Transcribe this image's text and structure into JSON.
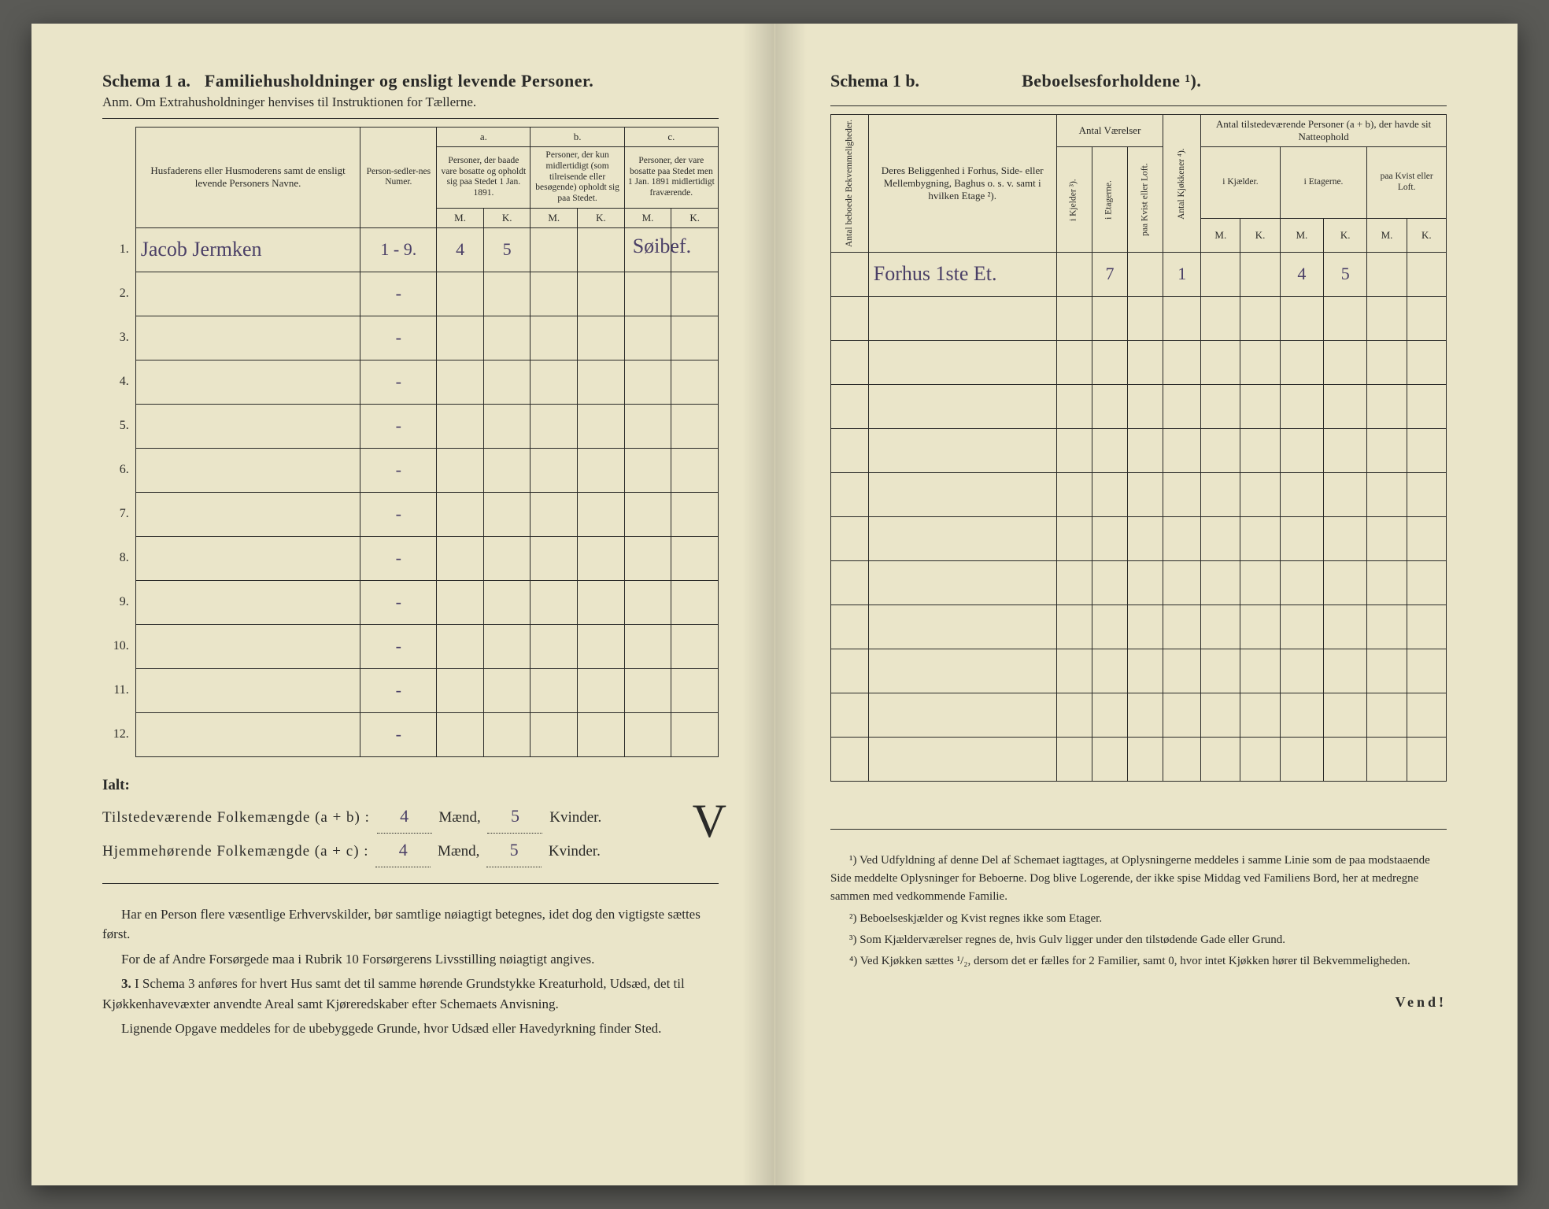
{
  "page_background": "#eae5c9",
  "ink_color": "#2a2a28",
  "handwriting_color": "#4a3f66",
  "left": {
    "schema_label": "Schema 1 a.",
    "schema_title": "Familiehusholdninger og ensligt levende Personer.",
    "schema_sub": "Anm.  Om Extrahusholdninger henvises til Instruktionen for Tællerne.",
    "col_name": "Husfaderens eller Husmoderens samt de ensligt levende Personers Navne.",
    "col_personsedler": "Person-sedler-nes Numer.",
    "group_a_label": "a.",
    "group_a_text": "Personer, der baade vare bosatte og opholdt sig paa Stedet 1 Jan. 1891.",
    "group_b_label": "b.",
    "group_b_text": "Personer, der kun midlertidigt (som tilreisende eller besøgende) opholdt sig paa Stedet.",
    "group_c_label": "c.",
    "group_c_text": "Personer, der vare bosatte paa Stedet men 1 Jan. 1891 midlertidigt fraværende.",
    "mk_m": "M.",
    "mk_k": "K.",
    "rows": [
      {
        "n": "1.",
        "name": "Jacob Jermken",
        "num": "1 - 9.",
        "aM": "4",
        "aK": "5",
        "bM": "",
        "bK": "",
        "cM": "",
        "cK": "",
        "note": "Søibef."
      },
      {
        "n": "2.",
        "name": "",
        "num": "-",
        "aM": "",
        "aK": "",
        "bM": "",
        "bK": "",
        "cM": "",
        "cK": "",
        "note": ""
      },
      {
        "n": "3.",
        "name": "",
        "num": "-",
        "aM": "",
        "aK": "",
        "bM": "",
        "bK": "",
        "cM": "",
        "cK": "",
        "note": ""
      },
      {
        "n": "4.",
        "name": "",
        "num": "-",
        "aM": "",
        "aK": "",
        "bM": "",
        "bK": "",
        "cM": "",
        "cK": "",
        "note": ""
      },
      {
        "n": "5.",
        "name": "",
        "num": "-",
        "aM": "",
        "aK": "",
        "bM": "",
        "bK": "",
        "cM": "",
        "cK": "",
        "note": ""
      },
      {
        "n": "6.",
        "name": "",
        "num": "-",
        "aM": "",
        "aK": "",
        "bM": "",
        "bK": "",
        "cM": "",
        "cK": "",
        "note": ""
      },
      {
        "n": "7.",
        "name": "",
        "num": "-",
        "aM": "",
        "aK": "",
        "bM": "",
        "bK": "",
        "cM": "",
        "cK": "",
        "note": ""
      },
      {
        "n": "8.",
        "name": "",
        "num": "-",
        "aM": "",
        "aK": "",
        "bM": "",
        "bK": "",
        "cM": "",
        "cK": "",
        "note": ""
      },
      {
        "n": "9.",
        "name": "",
        "num": "-",
        "aM": "",
        "aK": "",
        "bM": "",
        "bK": "",
        "cM": "",
        "cK": "",
        "note": ""
      },
      {
        "n": "10.",
        "name": "",
        "num": "-",
        "aM": "",
        "aK": "",
        "bM": "",
        "bK": "",
        "cM": "",
        "cK": "",
        "note": ""
      },
      {
        "n": "11.",
        "name": "",
        "num": "-",
        "aM": "",
        "aK": "",
        "bM": "",
        "bK": "",
        "cM": "",
        "cK": "",
        "note": ""
      },
      {
        "n": "12.",
        "name": "",
        "num": "-",
        "aM": "",
        "aK": "",
        "bM": "",
        "bK": "",
        "cM": "",
        "cK": "",
        "note": ""
      }
    ],
    "ialt": "Ialt:",
    "tot1_label": "Tilstedeværende Folkemængde (a + b) :",
    "tot1_m": "4",
    "tot1_mw": "Mænd,",
    "tot1_k": "5",
    "tot1_kw": "Kvinder.",
    "tot2_label": "Hjemmehørende Folkemængde (a + c) :",
    "tot2_m": "4",
    "tot2_k": "5",
    "body1": "Har en Person flere væsentlige Erhvervskilder, bør samtlige nøiagtigt betegnes, idet dog den vigtigste sættes først.",
    "body2": "For de af Andre Forsørgede maa i Rubrik 10 Forsørgerens Livsstilling nøiagtigt angives.",
    "body3_lead": "3.",
    "body3": "I Schema 3 anføres for hvert Hus samt det til samme hørende Grundstykke Kreaturhold, Udsæd, det til Kjøkkenhavevæxter anvendte Areal samt Kjøreredskaber efter Schemaets Anvisning.",
    "body4": "Lignende Opgave meddeles for de ubebyggede Grunde, hvor Udsæd eller Havedyrkning finder Sted."
  },
  "right": {
    "schema_label": "Schema 1 b.",
    "schema_title": "Beboelsesforholdene ¹).",
    "col_bekvem": "Antal beboede Bekvemmeligheder.",
    "col_beligg": "Deres Beliggenhed i Forhus, Side- eller Mellembygning, Baghus o. s. v. samt i hvilken Etage ²).",
    "grp_vaerelser": "Antal Værelser",
    "col_kjelder": "i Kjelder ³).",
    "col_etagerne": "i Etagerne.",
    "col_kvist": "paa Kvist eller Loft.",
    "col_kjokkener": "Antal Kjøkkener ⁴).",
    "grp_personer": "Antal tilstedeværende Personer (a + b), der havde sit Natteophold",
    "sub_kjelder": "i Kjælder.",
    "sub_etagerne": "i Etagerne.",
    "sub_kvist": "paa Kvist eller Loft.",
    "mk_m": "M.",
    "mk_k": "K.",
    "rows": [
      {
        "bekv": "",
        "bel": "Forhus 1ste Et.",
        "vk": "",
        "ve": "7",
        "vq": "",
        "kj": "1",
        "km": "",
        "kk": "",
        "em": "4",
        "ek": "5",
        "qm": "",
        "qk": ""
      },
      {
        "bekv": "",
        "bel": "",
        "vk": "",
        "ve": "",
        "vq": "",
        "kj": "",
        "km": "",
        "kk": "",
        "em": "",
        "ek": "",
        "qm": "",
        "qk": ""
      },
      {
        "bekv": "",
        "bel": "",
        "vk": "",
        "ve": "",
        "vq": "",
        "kj": "",
        "km": "",
        "kk": "",
        "em": "",
        "ek": "",
        "qm": "",
        "qk": ""
      },
      {
        "bekv": "",
        "bel": "",
        "vk": "",
        "ve": "",
        "vq": "",
        "kj": "",
        "km": "",
        "kk": "",
        "em": "",
        "ek": "",
        "qm": "",
        "qk": ""
      },
      {
        "bekv": "",
        "bel": "",
        "vk": "",
        "ve": "",
        "vq": "",
        "kj": "",
        "km": "",
        "kk": "",
        "em": "",
        "ek": "",
        "qm": "",
        "qk": ""
      },
      {
        "bekv": "",
        "bel": "",
        "vk": "",
        "ve": "",
        "vq": "",
        "kj": "",
        "km": "",
        "kk": "",
        "em": "",
        "ek": "",
        "qm": "",
        "qk": ""
      },
      {
        "bekv": "",
        "bel": "",
        "vk": "",
        "ve": "",
        "vq": "",
        "kj": "",
        "km": "",
        "kk": "",
        "em": "",
        "ek": "",
        "qm": "",
        "qk": ""
      },
      {
        "bekv": "",
        "bel": "",
        "vk": "",
        "ve": "",
        "vq": "",
        "kj": "",
        "km": "",
        "kk": "",
        "em": "",
        "ek": "",
        "qm": "",
        "qk": ""
      },
      {
        "bekv": "",
        "bel": "",
        "vk": "",
        "ve": "",
        "vq": "",
        "kj": "",
        "km": "",
        "kk": "",
        "em": "",
        "ek": "",
        "qm": "",
        "qk": ""
      },
      {
        "bekv": "",
        "bel": "",
        "vk": "",
        "ve": "",
        "vq": "",
        "kj": "",
        "km": "",
        "kk": "",
        "em": "",
        "ek": "",
        "qm": "",
        "qk": ""
      },
      {
        "bekv": "",
        "bel": "",
        "vk": "",
        "ve": "",
        "vq": "",
        "kj": "",
        "km": "",
        "kk": "",
        "em": "",
        "ek": "",
        "qm": "",
        "qk": ""
      },
      {
        "bekv": "",
        "bel": "",
        "vk": "",
        "ve": "",
        "vq": "",
        "kj": "",
        "km": "",
        "kk": "",
        "em": "",
        "ek": "",
        "qm": "",
        "qk": ""
      }
    ],
    "fn1": "¹) Ved Udfyldning af denne Del af Schemaet iagttages, at Oplysningerne meddeles i samme Linie som de paa modstaaende Side meddelte Oplysninger for Beboerne. Dog blive Logerende, der ikke spise Middag ved Familiens Bord, her at medregne sammen med vedkommende Familie.",
    "fn2": "²) Beboelseskjælder og Kvist regnes ikke som Etager.",
    "fn3": "³) Som Kjælderværelser regnes de, hvis Gulv ligger under den tilstødende Gade eller Grund.",
    "fn4": "⁴) Ved Kjøkken sættes ¹/₂, dersom det er fælles for 2 Familier, samt 0, hvor intet Kjøkken hører til Bekvemmeligheden.",
    "vend": "Vend!"
  }
}
